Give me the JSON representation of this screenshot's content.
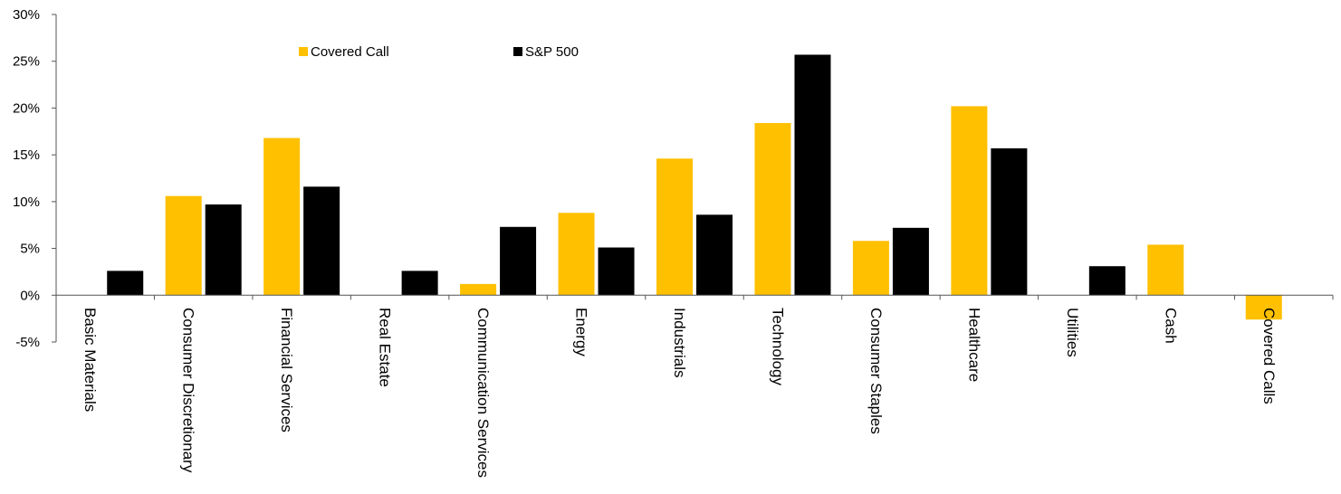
{
  "chart_data": {
    "type": "bar",
    "categories": [
      "Basic Materials",
      "Consumer Discretionary",
      "Financial Services",
      "Real Estate",
      "Communication Services",
      "Energy",
      "Industrials",
      "Technology",
      "Consumer Staples",
      "Healthcare",
      "Utilities",
      "Cash",
      "Covered Calls"
    ],
    "series": [
      {
        "name": "Covered Call",
        "color": "#FFC000",
        "values": [
          0,
          10.6,
          16.8,
          0,
          1.2,
          8.8,
          14.6,
          18.4,
          5.8,
          20.2,
          0,
          5.4,
          -2.6
        ]
      },
      {
        "name": "S&P 500",
        "color": "#000000",
        "values": [
          2.6,
          9.7,
          11.6,
          2.6,
          7.3,
          5.1,
          8.6,
          25.7,
          7.2,
          15.7,
          3.1,
          0,
          0
        ]
      }
    ],
    "ylim": [
      -5,
      30
    ],
    "yticks": [
      "30%",
      "25%",
      "20%",
      "15%",
      "10%",
      "5%",
      "0%",
      "-5%"
    ],
    "ytick_values": [
      30,
      25,
      20,
      15,
      10,
      5,
      0,
      -5
    ],
    "title": "",
    "xlabel": "",
    "ylabel": "",
    "legend_position": "top-left",
    "grid": false
  }
}
